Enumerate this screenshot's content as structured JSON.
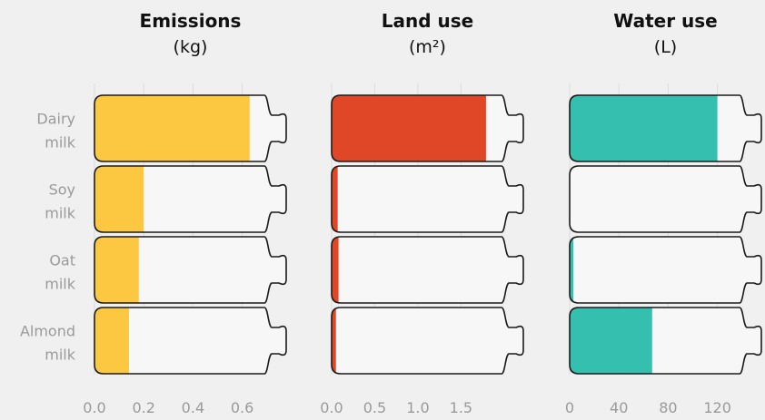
{
  "chart_data": {
    "type": "bar",
    "categories": [
      "Dairy\nmilk",
      "Soy\nmilk",
      "Oat\nmilk",
      "Almond\nmilk"
    ],
    "grid": true,
    "panels": [
      {
        "title": "Emissions",
        "unit": "(kg)",
        "color": "#fcc741",
        "xlim": [
          0,
          0.69
        ],
        "ticks": [
          "0.0",
          "0.2",
          "0.4",
          "0.6"
        ],
        "tick_values": [
          0,
          0.2,
          0.4,
          0.6
        ],
        "values": [
          0.63,
          0.2,
          0.18,
          0.14
        ]
      },
      {
        "title": "Land use",
        "unit": "(m²)",
        "color": "#e04726",
        "xlim": [
          0,
          1.97
        ],
        "ticks": [
          "0.0",
          "0.5",
          "1.0",
          "1.5"
        ],
        "tick_values": [
          0,
          0.5,
          1.0,
          1.5
        ],
        "values": [
          1.79,
          0.07,
          0.08,
          0.05
        ]
      },
      {
        "title": "Water use",
        "unit": "(L)",
        "color": "#35bfae",
        "xlim": [
          0,
          138
        ],
        "ticks": [
          "0",
          "40",
          "80",
          "120"
        ],
        "tick_values": [
          0,
          40,
          80,
          120
        ],
        "values": [
          120,
          0,
          3,
          67
        ]
      }
    ]
  }
}
